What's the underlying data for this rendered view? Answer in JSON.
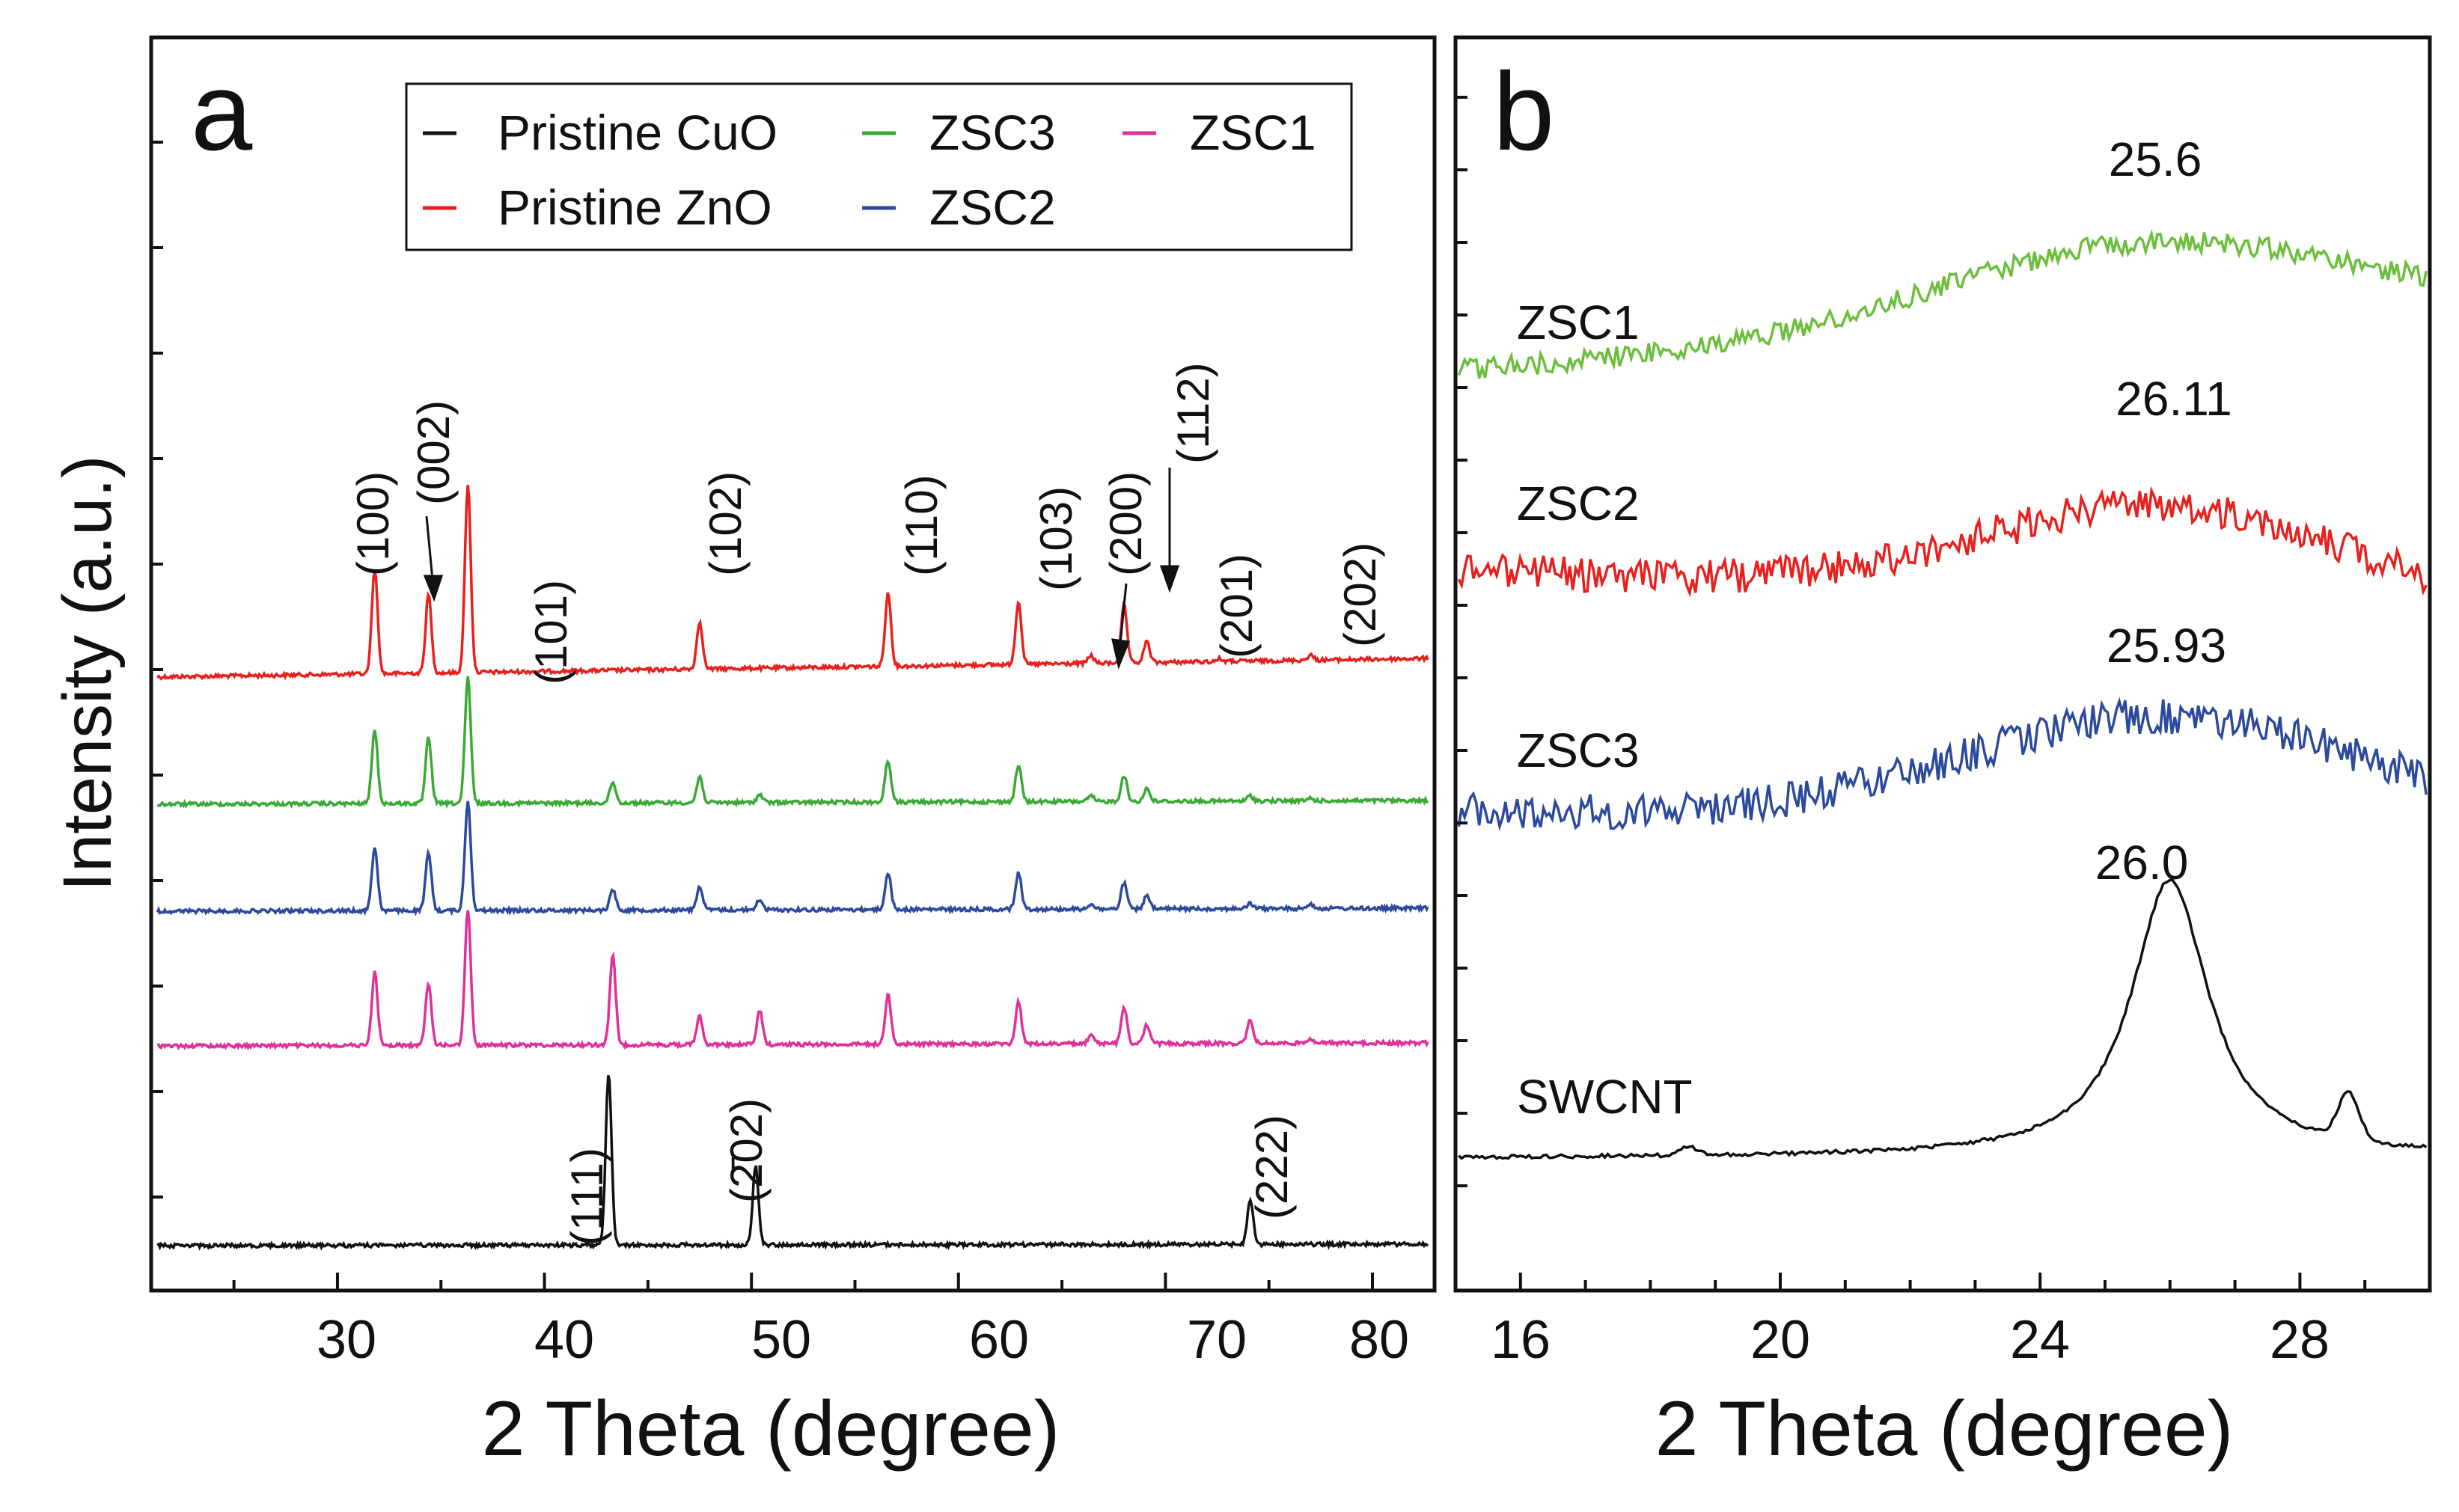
{
  "figure": {
    "panels": [
      {
        "panel_label": "a",
        "xlabel": "2 Theta (degree)",
        "ylabel": "Intensity (a.u.)",
        "xticks": [
          "30",
          "40",
          "50",
          "60",
          "70",
          "80"
        ],
        "legend": {
          "entries": [
            "Pristine CuO",
            "ZSC3",
            "ZSC1",
            "Pristine ZnO",
            "ZSC2"
          ]
        },
        "peak_labels": [
          "(100)",
          "(002)",
          "(101)",
          "(102)",
          "(110)",
          "(103)",
          "(200)",
          "(112)",
          "(201)",
          "(202)",
          "(111)",
          "(2̄02)",
          "(222)"
        ]
      },
      {
        "panel_label": "b",
        "xlabel": "2 Theta (degree)",
        "xticks": [
          "16",
          "20",
          "24",
          "28"
        ],
        "trace_labels": [
          "ZSC1",
          "ZSC2",
          "ZSC3",
          "SWCNT"
        ],
        "peak_values": [
          "25.6",
          "26.11",
          "25.93",
          "26.0"
        ]
      }
    ]
  },
  "chart_data": [
    {
      "type": "line",
      "xlabel": "2 Theta (degree)",
      "ylabel": "Intensity (a.u.)",
      "xlim": [
        21,
        83
      ],
      "y_ticks_shown": false,
      "grid": false,
      "legend_position": "top-right",
      "series": [
        {
          "name": "Pristine ZnO",
          "color": "#e8201e",
          "peaks": [
            {
              "x": 31.8,
              "h": 0.4
            },
            {
              "x": 34.4,
              "h": 0.3
            },
            {
              "x": 36.3,
              "h": 0.72
            },
            {
              "x": 47.5,
              "h": 0.18
            },
            {
              "x": 56.6,
              "h": 0.28
            },
            {
              "x": 62.9,
              "h": 0.24
            },
            {
              "x": 66.4,
              "h": 0.03
            },
            {
              "x": 68.0,
              "h": 0.22
            },
            {
              "x": 69.1,
              "h": 0.08
            },
            {
              "x": 72.6,
              "h": 0.01
            },
            {
              "x": 77.0,
              "h": 0.02
            }
          ]
        },
        {
          "name": "ZSC3",
          "color": "#3aa935",
          "peaks": [
            {
              "x": 31.8,
              "h": 0.28
            },
            {
              "x": 34.4,
              "h": 0.25
            },
            {
              "x": 36.3,
              "h": 0.48
            },
            {
              "x": 43.3,
              "h": 0.08
            },
            {
              "x": 47.5,
              "h": 0.1
            },
            {
              "x": 50.4,
              "h": 0.03
            },
            {
              "x": 56.6,
              "h": 0.16
            },
            {
              "x": 62.9,
              "h": 0.14
            },
            {
              "x": 66.4,
              "h": 0.02
            },
            {
              "x": 68.0,
              "h": 0.1
            },
            {
              "x": 69.1,
              "h": 0.05
            },
            {
              "x": 74.1,
              "h": 0.02
            },
            {
              "x": 77.0,
              "h": 0.01
            }
          ]
        },
        {
          "name": "ZSC2",
          "color": "#2c4a9c",
          "peaks": [
            {
              "x": 31.8,
              "h": 0.24
            },
            {
              "x": 34.4,
              "h": 0.22
            },
            {
              "x": 36.3,
              "h": 0.42
            },
            {
              "x": 43.3,
              "h": 0.08
            },
            {
              "x": 47.5,
              "h": 0.09
            },
            {
              "x": 50.4,
              "h": 0.04
            },
            {
              "x": 56.6,
              "h": 0.14
            },
            {
              "x": 62.9,
              "h": 0.14
            },
            {
              "x": 66.4,
              "h": 0.02
            },
            {
              "x": 68.0,
              "h": 0.1
            },
            {
              "x": 69.1,
              "h": 0.05
            },
            {
              "x": 74.1,
              "h": 0.02
            },
            {
              "x": 77.0,
              "h": 0.02
            }
          ]
        },
        {
          "name": "ZSC1",
          "color": "#e0309a",
          "peaks": [
            {
              "x": 31.8,
              "h": 0.28
            },
            {
              "x": 34.4,
              "h": 0.24
            },
            {
              "x": 36.3,
              "h": 0.52
            },
            {
              "x": 43.3,
              "h": 0.34
            },
            {
              "x": 47.5,
              "h": 0.11
            },
            {
              "x": 50.4,
              "h": 0.13
            },
            {
              "x": 56.6,
              "h": 0.19
            },
            {
              "x": 62.9,
              "h": 0.16
            },
            {
              "x": 66.4,
              "h": 0.03
            },
            {
              "x": 68.0,
              "h": 0.14
            },
            {
              "x": 69.1,
              "h": 0.07
            },
            {
              "x": 74.1,
              "h": 0.09
            },
            {
              "x": 77.0,
              "h": 0.02
            }
          ]
        },
        {
          "name": "Pristine CuO",
          "color": "#111111",
          "peaks": [
            {
              "x": 43.1,
              "h": 0.66
            },
            {
              "x": 50.2,
              "h": 0.3
            },
            {
              "x": 74.1,
              "h": 0.17
            }
          ]
        }
      ]
    },
    {
      "type": "line",
      "xlabel": "2 Theta (degree)",
      "xlim": [
        15,
        30
      ],
      "y_ticks_shown": false,
      "grid": false,
      "series": [
        {
          "name": "ZSC1",
          "color": "#6cbf3c",
          "peak_x": 25.6
        },
        {
          "name": "ZSC2",
          "color": "#e8201e",
          "peak_x": 26.11
        },
        {
          "name": "ZSC3",
          "color": "#2c4a9c",
          "peak_x": 25.93
        },
        {
          "name": "SWCNT",
          "color": "#111111",
          "peak_x": 26.0
        }
      ]
    }
  ]
}
